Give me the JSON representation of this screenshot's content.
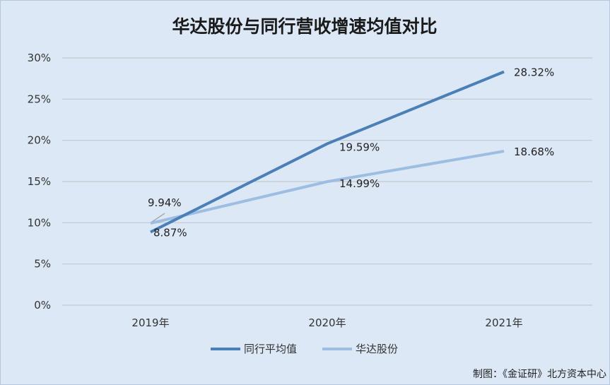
{
  "chart_data": {
    "type": "line",
    "title": "华达股份与同行营收增速均值对比",
    "categories": [
      "2019年",
      "2020年",
      "2021年"
    ],
    "series": [
      {
        "name": "同行平均值",
        "color": "#4a80b7",
        "values": [
          8.87,
          19.59,
          28.32
        ],
        "labels": [
          "8.87%",
          "19.59%",
          "28.32%"
        ]
      },
      {
        "name": "华达股份",
        "color": "#9dbde2",
        "values": [
          9.94,
          14.99,
          18.68
        ],
        "labels": [
          "9.94%",
          "14.99%",
          "18.68%"
        ]
      }
    ],
    "ylim": [
      0,
      30
    ],
    "yticks": [
      "0%",
      "5%",
      "10%",
      "15%",
      "20%",
      "25%",
      "30%"
    ],
    "grid": true,
    "legend_position": "bottom"
  },
  "source_note": "制图：《金证研》北方资本中心"
}
